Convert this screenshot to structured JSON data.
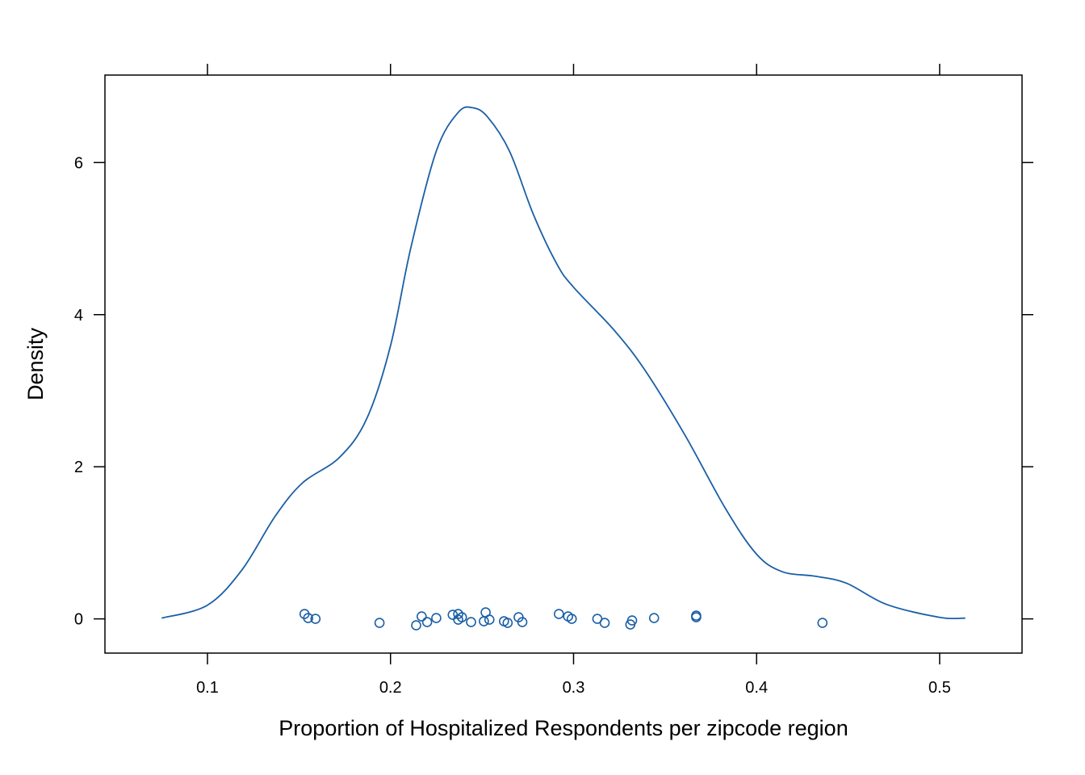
{
  "chart_data": {
    "type": "line",
    "subtype": "density-with-rug-points",
    "title": "",
    "xlabel": "Proportion of Hospitalized Respondents per zipcode region",
    "ylabel": "Density",
    "xlim": [
      0.044,
      0.545
    ],
    "ylim": [
      -0.45,
      7.15
    ],
    "x_ticks": [
      0.1,
      0.2,
      0.3,
      0.4,
      0.5
    ],
    "x_tick_labels": [
      "0.1",
      "0.2",
      "0.3",
      "0.4",
      "0.5"
    ],
    "y_ticks": [
      0,
      2,
      4,
      6
    ],
    "y_tick_labels": [
      "0",
      "2",
      "4",
      "6"
    ],
    "grid": false,
    "legend": "none",
    "series": [
      {
        "name": "density",
        "color": "#1a5fa5",
        "x": [
          0.075,
          0.1,
          0.119,
          0.137,
          0.152,
          0.172,
          0.187,
          0.2,
          0.211,
          0.225,
          0.237,
          0.245,
          0.253,
          0.265,
          0.278,
          0.291,
          0.3,
          0.322,
          0.339,
          0.361,
          0.383,
          0.4,
          0.414,
          0.432,
          0.449,
          0.471,
          0.5,
          0.514
        ],
        "y": [
          0.01,
          0.18,
          0.65,
          1.35,
          1.79,
          2.12,
          2.63,
          3.59,
          4.87,
          6.15,
          6.66,
          6.72,
          6.6,
          6.15,
          5.32,
          4.66,
          4.36,
          3.8,
          3.27,
          2.41,
          1.45,
          0.85,
          0.62,
          0.56,
          0.47,
          0.19,
          0.02,
          0.01
        ]
      }
    ],
    "points": {
      "name": "observations",
      "color": "#1a5fa5",
      "marker": "open-circle",
      "x": [
        0.153,
        0.155,
        0.159,
        0.194,
        0.214,
        0.217,
        0.22,
        0.225,
        0.234,
        0.237,
        0.237,
        0.239,
        0.244,
        0.251,
        0.252,
        0.254,
        0.262,
        0.264,
        0.27,
        0.272,
        0.292,
        0.297,
        0.299,
        0.313,
        0.317,
        0.331,
        0.332,
        0.344,
        0.367,
        0.367,
        0.436
      ]
    }
  }
}
